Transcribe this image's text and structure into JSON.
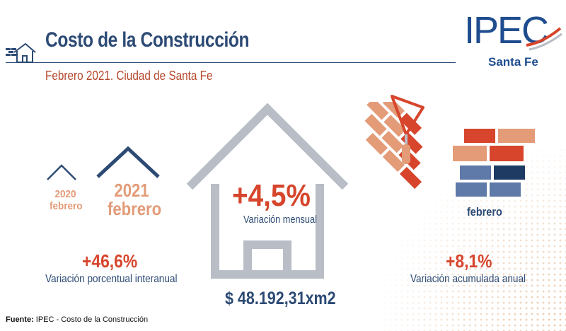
{
  "header": {
    "title": "Costo de la Construcción",
    "subtitle": "Febrero 2021. Ciudad de Santa Fe"
  },
  "logo": {
    "name": "Ipec",
    "location": "Santa Fe"
  },
  "periods": {
    "previous_year": "2020",
    "previous_month": "febrero",
    "current_year": "2021",
    "current_month": "febrero"
  },
  "indicators": {
    "monthly": {
      "value": "+4,5%",
      "label": "Variación mensual"
    },
    "interannual": {
      "value": "+46,6%",
      "label": "Variación porcentual interanual"
    },
    "annual_accumulated": {
      "value": "+8,1%",
      "label": "Variación acumulada anual"
    },
    "price_per_m2": "$ 48.192,31xm2",
    "bricks_month_label": "febrero"
  },
  "footer": {
    "source_label": "Fuente:",
    "source_text": " IPEC - Costo de la Construcción"
  },
  "colors": {
    "navy": "#2c4a74",
    "red": "#d6452c",
    "salmon": "#e39b78",
    "gray": "#b9bdc6",
    "logo_blue": "#1f4d8f"
  },
  "icons": [
    "house-brick-icon",
    "house-outline-icon",
    "brick-stack-icon",
    "trowel-icon"
  ]
}
